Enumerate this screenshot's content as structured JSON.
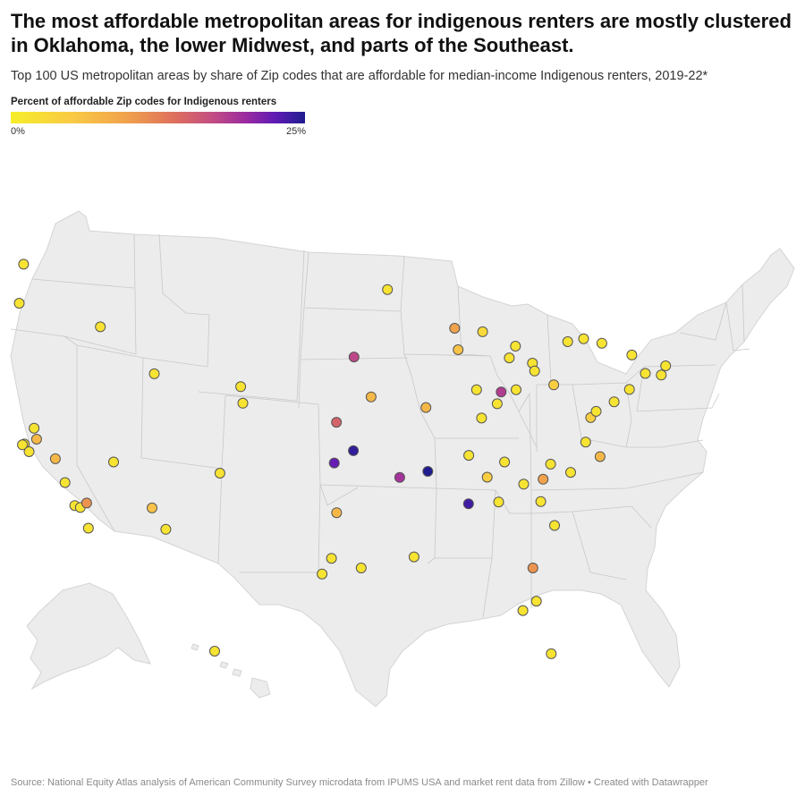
{
  "title": "The most affordable metropolitan areas for indigenous renters are mostly clustered in Oklahoma, the lower Midwest, and parts of the Southeast.",
  "subtitle": "Top 100 US metropolitan areas by share of Zip codes that are affordable for median-income Indigenous renters, 2019-22*",
  "legend": {
    "title": "Percent of affordable Zip codes for Indigenous renters",
    "min_label": "0%",
    "max_label": "25%",
    "range": [
      0,
      25
    ],
    "colors": [
      "#f6ee2a",
      "#f9c845",
      "#f0a04c",
      "#dd6e5e",
      "#c44f82",
      "#9a2aa0",
      "#5e1bb4",
      "#1f1c8f"
    ]
  },
  "map": {
    "land_color": "#ececec",
    "border_color": "#c8c8c8",
    "marker_stroke": "#555555",
    "points": [
      {
        "lon": -122.33,
        "lat": 47.61,
        "value": 1
      },
      {
        "lon": -122.68,
        "lat": 45.52,
        "value": 1
      },
      {
        "lon": -116.2,
        "lat": 43.62,
        "value": 1
      },
      {
        "lon": -122.27,
        "lat": 37.8,
        "value": 1
      },
      {
        "lon": -121.49,
        "lat": 38.58,
        "value": 1
      },
      {
        "lon": -122.42,
        "lat": 37.77,
        "value": 1
      },
      {
        "lon": -121.29,
        "lat": 37.96,
        "value": 5
      },
      {
        "lon": -121.89,
        "lat": 37.34,
        "value": 1
      },
      {
        "lon": -119.79,
        "lat": 36.74,
        "value": 5
      },
      {
        "lon": -119.02,
        "lat": 35.37,
        "value": 1
      },
      {
        "lon": -118.24,
        "lat": 34.05,
        "value": 1
      },
      {
        "lon": -117.8,
        "lat": 33.9,
        "value": 1
      },
      {
        "lon": -117.29,
        "lat": 34.1,
        "value": 8
      },
      {
        "lon": -117.16,
        "lat": 32.72,
        "value": 1
      },
      {
        "lon": -115.14,
        "lat": 36.17,
        "value": 1
      },
      {
        "lon": -111.89,
        "lat": 40.76,
        "value": 1
      },
      {
        "lon": -112.07,
        "lat": 33.45,
        "value": 4
      },
      {
        "lon": -110.97,
        "lat": 32.22,
        "value": 1
      },
      {
        "lon": -106.65,
        "lat": 35.08,
        "value": 1
      },
      {
        "lon": -104.99,
        "lat": 39.74,
        "value": 1
      },
      {
        "lon": -104.82,
        "lat": 38.83,
        "value": 1
      },
      {
        "lon": -95.94,
        "lat": 41.26,
        "value": 15
      },
      {
        "lon": -97.34,
        "lat": 37.69,
        "value": 12
      },
      {
        "lon": -95.99,
        "lat": 36.15,
        "value": 24
      },
      {
        "lon": -97.52,
        "lat": 35.47,
        "value": 21
      },
      {
        "lon": -94.58,
        "lat": 39.1,
        "value": 5
      },
      {
        "lon": -92.29,
        "lat": 34.75,
        "value": 17
      },
      {
        "lon": -90.2,
        "lat": 38.63,
        "value": 5
      },
      {
        "lon": -90.05,
        "lat": 35.15,
        "value": 25
      },
      {
        "lon": -86.8,
        "lat": 33.52,
        "value": 23
      },
      {
        "lon": -97.33,
        "lat": 32.76,
        "value": 5
      },
      {
        "lon": -98.49,
        "lat": 29.42,
        "value": 1
      },
      {
        "lon": -97.74,
        "lat": 30.27,
        "value": 1
      },
      {
        "lon": -95.37,
        "lat": 29.76,
        "value": 1
      },
      {
        "lon": -91.15,
        "lat": 30.45,
        "value": 1
      },
      {
        "lon": -93.27,
        "lat": 44.98,
        "value": 1
      },
      {
        "lon": -87.91,
        "lat": 43.04,
        "value": 7
      },
      {
        "lon": -87.63,
        "lat": 41.88,
        "value": 4
      },
      {
        "lon": -85.67,
        "lat": 42.96,
        "value": 2
      },
      {
        "lon": -83.05,
        "lat": 42.33,
        "value": 1
      },
      {
        "lon": -83.54,
        "lat": 41.66,
        "value": 1
      },
      {
        "lon": -81.69,
        "lat": 41.5,
        "value": 1
      },
      {
        "lon": -81.52,
        "lat": 41.08,
        "value": 1
      },
      {
        "lon": -86.16,
        "lat": 39.77,
        "value": 1
      },
      {
        "lon": -84.19,
        "lat": 39.76,
        "value": 16
      },
      {
        "lon": -84.51,
        "lat": 39.1,
        "value": 1
      },
      {
        "lon": -83.0,
        "lat": 39.96,
        "value": 1
      },
      {
        "lon": -85.76,
        "lat": 38.25,
        "value": 1
      },
      {
        "lon": -86.78,
        "lat": 36.16,
        "value": 1
      },
      {
        "lon": -83.92,
        "lat": 35.96,
        "value": 1
      },
      {
        "lon": -85.31,
        "lat": 35.05,
        "value": 3
      },
      {
        "lon": -84.39,
        "lat": 33.75,
        "value": 1
      },
      {
        "lon": -82.39,
        "lat": 34.85,
        "value": 1
      },
      {
        "lon": -80.84,
        "lat": 35.23,
        "value": 7
      },
      {
        "lon": -81.03,
        "lat": 34.0,
        "value": 1
      },
      {
        "lon": -79.93,
        "lat": 32.78,
        "value": 1
      },
      {
        "lon": -80.24,
        "lat": 36.1,
        "value": 1
      },
      {
        "lon": -78.64,
        "lat": 35.78,
        "value": 1
      },
      {
        "lon": -76.29,
        "lat": 36.85,
        "value": 5
      },
      {
        "lon": -77.44,
        "lat": 37.54,
        "value": 1
      },
      {
        "lon": -77.04,
        "lat": 38.91,
        "value": 3
      },
      {
        "lon": -76.61,
        "lat": 39.29,
        "value": 1
      },
      {
        "lon": -75.17,
        "lat": 39.95,
        "value": 1
      },
      {
        "lon": -79.99,
        "lat": 40.44,
        "value": 3
      },
      {
        "lon": -78.88,
        "lat": 42.89,
        "value": 1
      },
      {
        "lon": -77.61,
        "lat": 43.16,
        "value": 1
      },
      {
        "lon": -76.15,
        "lat": 43.05,
        "value": 1
      },
      {
        "lon": -73.76,
        "lat": 42.65,
        "value": 1
      },
      {
        "lon": -71.06,
        "lat": 42.36,
        "value": 1
      },
      {
        "lon": -71.41,
        "lat": 41.82,
        "value": 1
      },
      {
        "lon": -72.68,
        "lat": 41.76,
        "value": 1
      },
      {
        "lon": -73.95,
        "lat": 40.75,
        "value": 1
      },
      {
        "lon": -81.66,
        "lat": 30.33,
        "value": 8
      },
      {
        "lon": -81.38,
        "lat": 28.54,
        "value": 1
      },
      {
        "lon": -82.46,
        "lat": 27.95,
        "value": 1
      },
      {
        "lon": -80.19,
        "lat": 25.76,
        "value": 1
      },
      {
        "lon": -157.86,
        "lat": 21.31,
        "value": 1
      }
    ]
  },
  "footer": "Source: National Equity Atlas analysis of American Community Survey microdata from IPUMS USA and market rent data from Zillow • Created with Datawrapper"
}
